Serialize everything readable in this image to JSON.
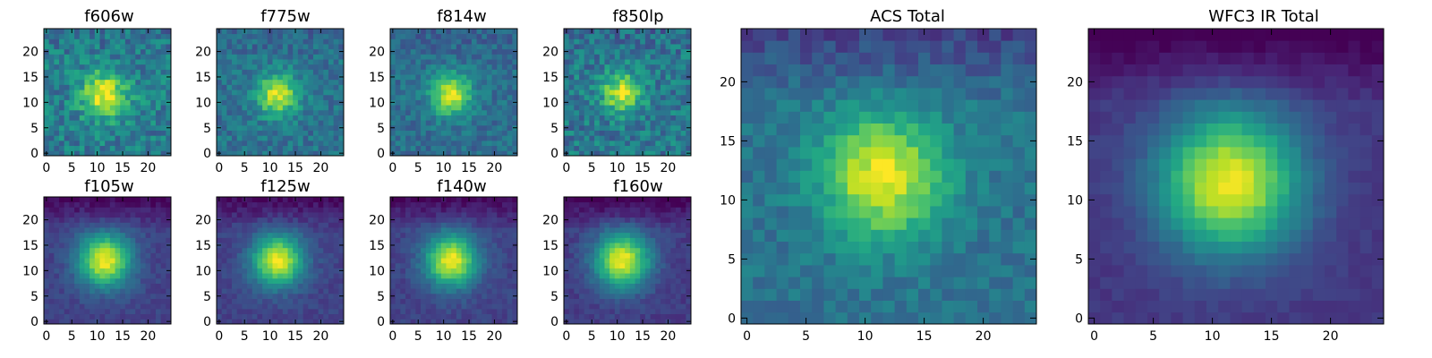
{
  "figure": {
    "background": "#ffffff",
    "colormap": "viridis"
  },
  "chart_data": [
    {
      "type": "heatmap",
      "title": "f606w",
      "xlim": [
        0,
        24
      ],
      "ylim": [
        0,
        24
      ],
      "xticks": [
        0,
        5,
        10,
        15,
        20
      ],
      "yticks": [
        0,
        5,
        10,
        15,
        20
      ],
      "center": [
        11.5,
        11.5
      ],
      "sigma": 3.2,
      "base": 0.42,
      "peak": 0.55,
      "noise": 0.3,
      "seed": 11
    },
    {
      "type": "heatmap",
      "title": "f775w",
      "xlim": [
        0,
        24
      ],
      "ylim": [
        0,
        24
      ],
      "xticks": [
        0,
        5,
        10,
        15,
        20
      ],
      "yticks": [
        0,
        5,
        10,
        15,
        20
      ],
      "center": [
        11.5,
        11.5
      ],
      "sigma": 2.8,
      "base": 0.38,
      "peak": 0.58,
      "noise": 0.22,
      "seed": 23
    },
    {
      "type": "heatmap",
      "title": "f814w",
      "xlim": [
        0,
        24
      ],
      "ylim": [
        0,
        24
      ],
      "xticks": [
        0,
        5,
        10,
        15,
        20
      ],
      "yticks": [
        0,
        5,
        10,
        15,
        20
      ],
      "center": [
        11.5,
        11.5
      ],
      "sigma": 2.8,
      "base": 0.36,
      "peak": 0.6,
      "noise": 0.2,
      "seed": 37
    },
    {
      "type": "heatmap",
      "title": "f850lp",
      "xlim": [
        0,
        24
      ],
      "ylim": [
        0,
        24
      ],
      "xticks": [
        0,
        5,
        10,
        15,
        20
      ],
      "yticks": [
        0,
        5,
        10,
        15,
        20
      ],
      "center": [
        11.0,
        12.0
      ],
      "sigma": 2.7,
      "base": 0.4,
      "peak": 0.55,
      "noise": 0.3,
      "seed": 41
    },
    {
      "type": "heatmap",
      "title": "f105w",
      "xlim": [
        0,
        24
      ],
      "ylim": [
        0,
        24
      ],
      "xticks": [
        0,
        5,
        10,
        15,
        20
      ],
      "yticks": [
        0,
        5,
        10,
        15,
        20
      ],
      "center": [
        11.5,
        12.0
      ],
      "sigma": 3.6,
      "base": 0.2,
      "peak": 0.78,
      "noise": 0.1,
      "seed": 53
    },
    {
      "type": "heatmap",
      "title": "f125w",
      "xlim": [
        0,
        24
      ],
      "ylim": [
        0,
        24
      ],
      "xticks": [
        0,
        5,
        10,
        15,
        20
      ],
      "yticks": [
        0,
        5,
        10,
        15,
        20
      ],
      "center": [
        11.5,
        12.0
      ],
      "sigma": 3.5,
      "base": 0.2,
      "peak": 0.78,
      "noise": 0.1,
      "seed": 67
    },
    {
      "type": "heatmap",
      "title": "f140w",
      "xlim": [
        0,
        24
      ],
      "ylim": [
        0,
        24
      ],
      "xticks": [
        0,
        5,
        10,
        15,
        20
      ],
      "yticks": [
        0,
        5,
        10,
        15,
        20
      ],
      "center": [
        11.5,
        12.0
      ],
      "sigma": 3.6,
      "base": 0.2,
      "peak": 0.78,
      "noise": 0.1,
      "seed": 79
    },
    {
      "type": "heatmap",
      "title": "f160w",
      "xlim": [
        0,
        24
      ],
      "ylim": [
        0,
        24
      ],
      "xticks": [
        0,
        5,
        10,
        15,
        20
      ],
      "yticks": [
        0,
        5,
        10,
        15,
        20
      ],
      "center": [
        11.0,
        12.0
      ],
      "sigma": 3.8,
      "base": 0.18,
      "peak": 0.8,
      "noise": 0.1,
      "seed": 83
    },
    {
      "type": "heatmap",
      "title": "ACS Total",
      "xlim": [
        0,
        24
      ],
      "ylim": [
        0,
        24
      ],
      "xticks": [
        0,
        5,
        10,
        15,
        20
      ],
      "yticks": [
        0,
        5,
        10,
        15,
        20
      ],
      "center": [
        11.5,
        12.0
      ],
      "sigma": 3.6,
      "base": 0.38,
      "peak": 0.6,
      "noise": 0.16,
      "seed": 97
    },
    {
      "type": "heatmap",
      "title": "WFC3 IR Total",
      "xlim": [
        0,
        24
      ],
      "ylim": [
        0,
        24
      ],
      "xticks": [
        0,
        5,
        10,
        15,
        20
      ],
      "yticks": [
        0,
        5,
        10,
        15,
        20
      ],
      "center": [
        11.5,
        11.5
      ],
      "sigma": 4.2,
      "base": 0.16,
      "peak": 0.82,
      "noise": 0.06,
      "seed": 101
    }
  ]
}
